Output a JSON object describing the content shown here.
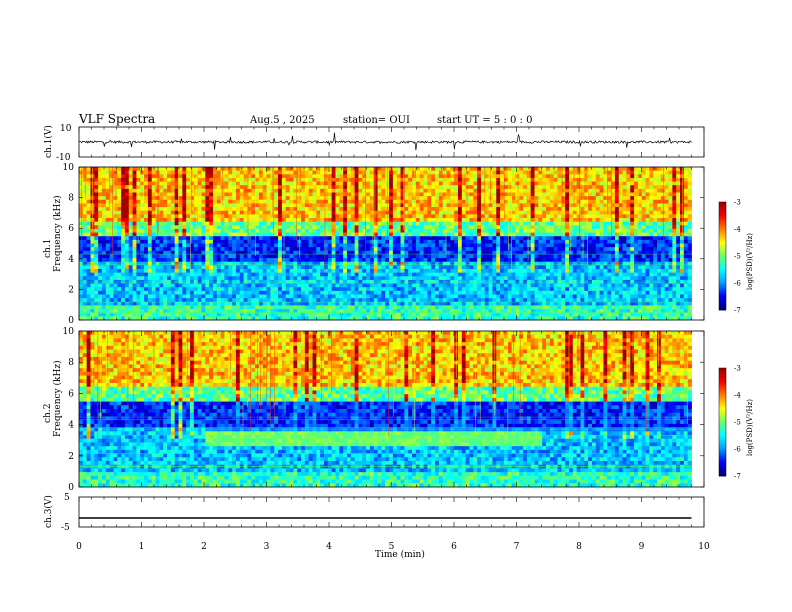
{
  "header": {
    "title": "VLF Spectra",
    "date": "Aug.5 , 2025",
    "station": "station= OUI",
    "start_ut": "start UT = 5 : 0 : 0"
  },
  "colors": {
    "spectrogram_scale": [
      "#00007a",
      "#0000ff",
      "#00a0ff",
      "#00ffff",
      "#66ff66",
      "#ffff00",
      "#ff8000",
      "#ff0000",
      "#a00000"
    ],
    "trace": "#000000"
  },
  "chart_data": [
    {
      "type": "line",
      "name_label": "ch.1(V)",
      "ylim": [
        -10,
        10
      ],
      "y_ticks": [
        "10",
        "-10"
      ],
      "x_range_min": [
        0,
        9.8
      ],
      "baseline_value": 0,
      "description_values": "waveform noise about 0 V with occasional spikes"
    },
    {
      "type": "heatmap",
      "ylabel_ch": "ch.1",
      "ylabel": "Frequency (kHz)",
      "ylim": [
        0,
        10
      ],
      "y_ticks": [
        "0",
        "2",
        "4",
        "6",
        "8",
        "10"
      ],
      "colorbar": {
        "label": "log(PSD)(V²/Hz)",
        "ticks": [
          "-3",
          "-4",
          "-5",
          "-6",
          "-7"
        ],
        "range": [
          -7,
          -3
        ]
      }
    },
    {
      "type": "heatmap",
      "ylabel_ch": "ch.2",
      "ylabel": "Frequency (kHz)",
      "ylim": [
        0,
        10
      ],
      "y_ticks": [
        "0",
        "2",
        "4",
        "6",
        "8",
        "10"
      ],
      "band_event": {
        "start_min": 2.0,
        "end_min": 7.4,
        "low_khz": 2.7,
        "high_khz": 3.5
      },
      "colorbar": {
        "label": "log(PSD)(V²/Hz)",
        "ticks": [
          "-3",
          "-4",
          "-5",
          "-6",
          "-7"
        ],
        "range": [
          -7,
          -3
        ]
      }
    },
    {
      "type": "line",
      "name_label": "ch.3(V)",
      "ylim": [
        -5,
        5
      ],
      "y_ticks": [
        "5",
        "-5"
      ],
      "constant_value": -2
    }
  ],
  "x_axis": {
    "label": "Time (min)",
    "ticks": [
      "0",
      "1",
      "2",
      "3",
      "4",
      "5",
      "6",
      "7",
      "8",
      "9",
      "10"
    ],
    "range": [
      0,
      10
    ]
  }
}
